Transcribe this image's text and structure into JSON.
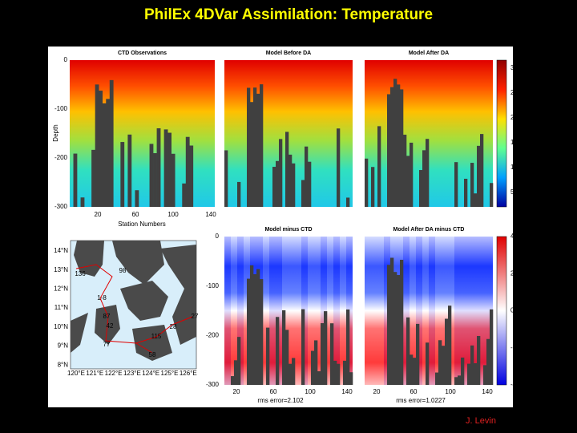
{
  "title": "PhilEx 4DVar Assimilation: Temperature",
  "top_panels": {
    "titles": [
      "CTD Observations",
      "Model Before DA",
      "Model After DA"
    ],
    "y_label": "Depth",
    "y_ticks": [
      "0",
      "-100",
      "-200",
      "-300"
    ],
    "x_label": "Station Numbers",
    "x_ticks": [
      "20",
      "60",
      "100",
      "140"
    ],
    "colorbar_ticks": [
      "30",
      "25",
      "20",
      "15",
      "10",
      "5"
    ]
  },
  "bottom_panels": {
    "titles": [
      "Model minus CTD",
      "Model After DA minus CTD"
    ],
    "y_ticks": [
      "0",
      "-100",
      "-200",
      "-300"
    ],
    "x_ticks": [
      "20",
      "60",
      "100",
      "140"
    ],
    "rms_errors": [
      "rms error=2.102",
      "rms error=1.0227"
    ],
    "colorbar_ticks": [
      "4",
      "2",
      "0",
      "-2",
      "-4"
    ]
  },
  "map": {
    "lat_labels": [
      "14°N",
      "13°N",
      "12°N",
      "11°N",
      "10°N",
      "9°N",
      "8°N"
    ],
    "lon_labels": [
      "120°E",
      "121°E",
      "122°E",
      "123°E",
      "124°E",
      "125°E",
      "126°E"
    ],
    "station_labels": [
      "136",
      "98",
      "1-8",
      "87",
      "42",
      "77",
      "27",
      "28",
      "115",
      "58"
    ]
  },
  "credit": "J. Levin"
}
